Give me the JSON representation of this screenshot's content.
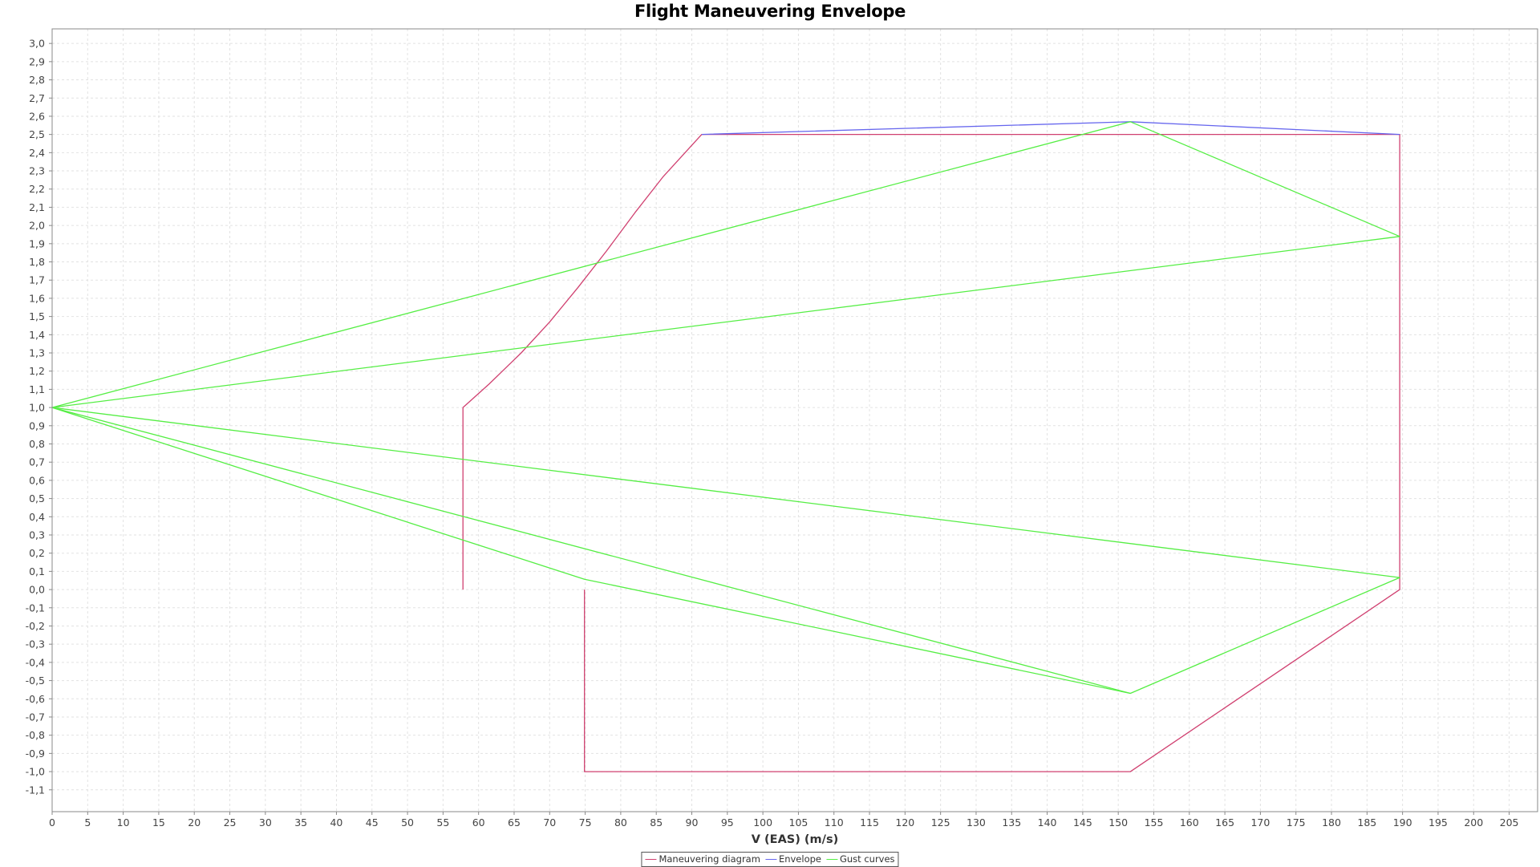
{
  "chart_data": {
    "type": "line",
    "title": "Flight Maneuvering Envelope",
    "xlabel": "V (EAS) (m/s)",
    "ylabel": "",
    "xlim": [
      0,
      209
    ],
    "ylim": [
      -1.22,
      3.08
    ],
    "x_ticks": [
      0,
      5,
      10,
      15,
      20,
      25,
      30,
      35,
      40,
      45,
      50,
      55,
      60,
      65,
      70,
      75,
      80,
      85,
      90,
      95,
      100,
      105,
      110,
      115,
      120,
      125,
      130,
      135,
      140,
      145,
      150,
      155,
      160,
      165,
      170,
      175,
      180,
      185,
      190,
      195,
      200,
      205
    ],
    "y_ticks": [
      "-1,1",
      "-1,0",
      "-0,9",
      "-0,8",
      "-0,7",
      "-0,6",
      "-0,5",
      "-0,4",
      "-0,3",
      "-0,2",
      "-0,1",
      "0,0",
      "0,1",
      "0,2",
      "0,3",
      "0,4",
      "0,5",
      "0,6",
      "0,7",
      "0,8",
      "0,9",
      "1,0",
      "1,1",
      "1,2",
      "1,3",
      "1,4",
      "1,5",
      "1,6",
      "1,7",
      "1,8",
      "1,9",
      "2,0",
      "2,1",
      "2,2",
      "2,3",
      "2,4",
      "2,5",
      "2,6",
      "2,7",
      "2,8",
      "2,9",
      "3,0"
    ],
    "y_tick_values": [
      -1.1,
      -1.0,
      -0.9,
      -0.8,
      -0.7,
      -0.6,
      -0.5,
      -0.4,
      -0.3,
      -0.2,
      -0.1,
      0.0,
      0.1,
      0.2,
      0.3,
      0.4,
      0.5,
      0.6,
      0.7,
      0.8,
      0.9,
      1.0,
      1.1,
      1.2,
      1.3,
      1.4,
      1.5,
      1.6,
      1.7,
      1.8,
      1.9,
      2.0,
      2.1,
      2.2,
      2.3,
      2.4,
      2.5,
      2.6,
      2.7,
      2.8,
      2.9,
      3.0
    ],
    "grid": true,
    "legend_position": "bottom-center",
    "series": [
      {
        "name": "Maneuvering diagram",
        "color": "#d04070",
        "segments": [
          [
            [
              57.8,
              0.0
            ],
            [
              57.8,
              1.0
            ],
            [
              61.5,
              1.13
            ],
            [
              66,
              1.3
            ],
            [
              70,
              1.47
            ],
            [
              74,
              1.66
            ],
            [
              78,
              1.86
            ],
            [
              82,
              2.07
            ],
            [
              86,
              2.27
            ],
            [
              91.4,
              2.5
            ],
            [
              189.6,
              2.5
            ],
            [
              189.6,
              0.0
            ],
            [
              151.7,
              -1.0
            ],
            [
              74.9,
              -1.0
            ],
            [
              74.9,
              0.0
            ]
          ]
        ]
      },
      {
        "name": "Envelope",
        "color": "#6666ee",
        "segments": [
          [
            [
              91.4,
              2.5
            ],
            [
              151.7,
              2.57
            ],
            [
              189.6,
              2.5
            ]
          ]
        ]
      },
      {
        "name": "Gust curves",
        "color": "#55ee44",
        "segments": [
          [
            [
              0,
              1.0
            ],
            [
              151.7,
              2.57
            ],
            [
              189.6,
              1.94
            ],
            [
              0,
              1.0
            ]
          ],
          [
            [
              0,
              1.0
            ],
            [
              189.6,
              0.066
            ],
            [
              0,
              1.0
            ]
          ],
          [
            [
              0,
              1.0
            ],
            [
              151.7,
              -0.57
            ],
            [
              189.6,
              0.066
            ]
          ],
          [
            [
              0,
              1.0
            ],
            [
              74.9,
              0.057
            ],
            [
              151.7,
              -0.57
            ]
          ]
        ]
      }
    ]
  }
}
